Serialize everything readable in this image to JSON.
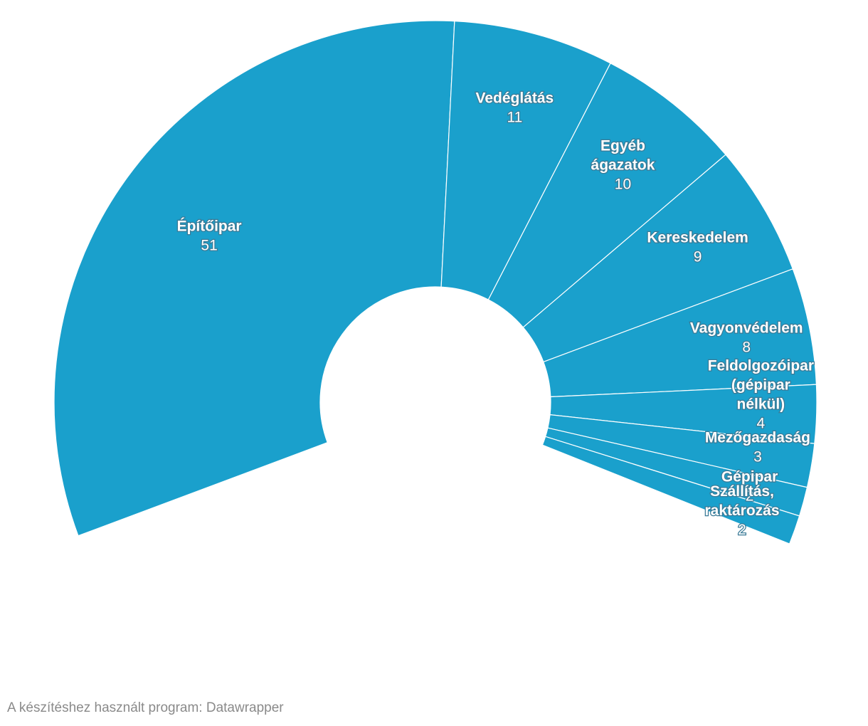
{
  "chart_data": {
    "type": "pie",
    "categories": [
      "Építőipar",
      "Vedéglátás",
      "Egyéb ágazatok",
      "Kereskedelem",
      "Vagyonvédelem",
      "Feldolgozóipar (gépipar nélkül)",
      "Mezőgazdaság",
      "Gépipar",
      "Szállítás, raktározás"
    ],
    "labels": [
      [
        "Építőipar"
      ],
      [
        "Vedéglátás"
      ],
      [
        "Egyéb",
        "ágazatok"
      ],
      [
        "Kereskedelem"
      ],
      [
        "Vagyonvédelem"
      ],
      [
        "Feldolgozóipar",
        "(gépipar",
        "nélkül)"
      ],
      [
        "Mezőgazdaság"
      ],
      [
        "Gépipar"
      ],
      [
        "Szállítás,",
        "raktározás"
      ]
    ],
    "values": [
      51,
      11,
      10,
      9,
      8,
      4,
      3,
      2,
      2
    ],
    "color": "#1aa0cc",
    "donut": true,
    "arc": "partial"
  },
  "footer": {
    "credit": "A készítéshez használt program: Datawrapper"
  }
}
